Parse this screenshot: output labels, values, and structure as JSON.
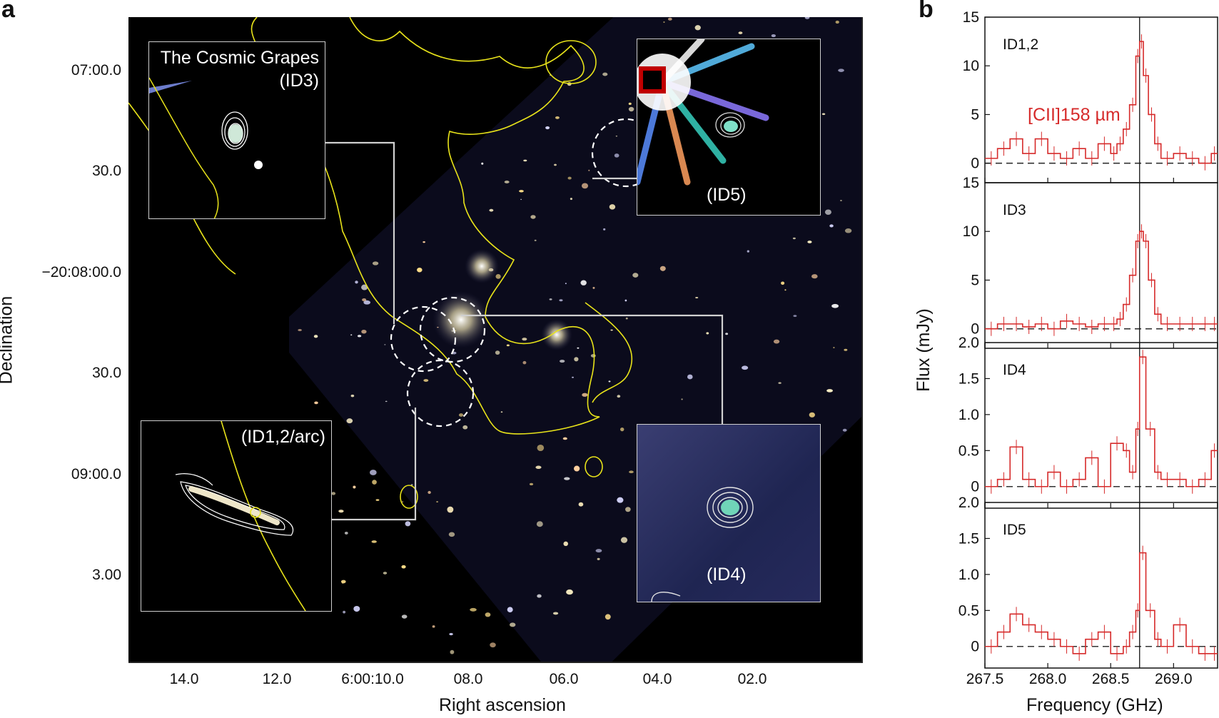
{
  "panel_a": {
    "letter": "a",
    "xlabel": "Right ascension",
    "ylabel": "Declination",
    "x_ticks": [
      "14.0",
      "12.0",
      "6:00:10.0",
      "08.0",
      "06.0",
      "04.0",
      "02.0"
    ],
    "y_ticks": [
      "07:00.0",
      "30.0",
      "−20:08:00.0",
      "30.0",
      "09:00.0",
      "3.00"
    ],
    "insets": {
      "id3": {
        "title": "The Cosmic Grapes",
        "tag": "(ID3)"
      },
      "id5": {
        "tag": "(ID5)"
      },
      "id12": {
        "tag": "(ID1,2/arc)"
      },
      "id4": {
        "tag": "(ID4)"
      }
    },
    "colors": {
      "contour": "#e8e31a",
      "leader": "#d8d8d8",
      "circle": "#ffffff"
    }
  },
  "panel_b": {
    "letter": "b",
    "xlabel": "Frequency (GHz)",
    "ylabel": "Flux (mJy)",
    "line_label": "[CII]158 µm",
    "line_color": "#d62a2a"
  },
  "chart_data": {
    "type": "line",
    "x_ticks": [
      "267.5",
      "268.0",
      "268.5",
      "269.0"
    ],
    "xlim": [
      267.5,
      269.35
    ],
    "reference_line_x": 268.73,
    "panels": [
      {
        "name": "ID1,2",
        "ylim": [
          -2,
          15
        ],
        "y_ticks": [
          "15",
          "10",
          "5",
          "0"
        ],
        "x": [
          267.5,
          267.6,
          267.7,
          267.8,
          267.9,
          268.0,
          268.1,
          268.2,
          268.3,
          268.4,
          268.5,
          268.55,
          268.6,
          268.65,
          268.7,
          268.73,
          268.76,
          268.8,
          268.85,
          268.9,
          269.0,
          269.1,
          269.2,
          269.3
        ],
        "y": [
          0.5,
          1.5,
          2.5,
          1.0,
          2.5,
          1.0,
          0.5,
          1.5,
          0.5,
          2.0,
          1.0,
          2.0,
          3.5,
          6.0,
          11.0,
          12.5,
          9.0,
          5.0,
          2.0,
          0.5,
          1.0,
          0.5,
          0.0,
          1.0
        ]
      },
      {
        "name": "ID3",
        "ylim": [
          -2,
          15
        ],
        "y_ticks": [
          "15",
          "10",
          "5",
          "0"
        ],
        "x": [
          267.5,
          267.6,
          267.7,
          267.8,
          267.9,
          268.0,
          268.1,
          268.2,
          268.3,
          268.4,
          268.5,
          268.55,
          268.6,
          268.65,
          268.7,
          268.73,
          268.76,
          268.8,
          268.85,
          268.9,
          269.0,
          269.1,
          269.2,
          269.3
        ],
        "y": [
          0.0,
          0.5,
          0.5,
          0.2,
          0.5,
          0.0,
          0.8,
          0.5,
          0.2,
          0.5,
          0.5,
          1.0,
          2.5,
          5.5,
          9.0,
          10.0,
          9.0,
          5.0,
          1.5,
          0.5,
          0.5,
          0.5,
          0.5,
          0.5
        ]
      },
      {
        "name": "ID4",
        "ylim": [
          -0.3,
          2.0
        ],
        "y_ticks": [
          "2.0",
          "1.5",
          "1.0",
          "0.5",
          "0"
        ],
        "x": [
          267.5,
          267.6,
          267.7,
          267.8,
          267.9,
          268.0,
          268.1,
          268.2,
          268.3,
          268.4,
          268.5,
          268.6,
          268.65,
          268.7,
          268.73,
          268.78,
          268.85,
          268.9,
          269.0,
          269.1,
          269.2,
          269.3
        ],
        "y": [
          0.0,
          0.1,
          0.55,
          0.1,
          0.0,
          0.2,
          0.0,
          0.1,
          0.4,
          0.0,
          0.6,
          0.5,
          0.2,
          0.8,
          1.8,
          0.8,
          0.2,
          0.1,
          0.1,
          0.0,
          0.1,
          0.5
        ]
      },
      {
        "name": "ID5",
        "ylim": [
          -0.3,
          2.0
        ],
        "y_ticks": [
          "2.0",
          "1.5",
          "1.0",
          "0.5",
          "0"
        ],
        "x": [
          267.5,
          267.6,
          267.7,
          267.8,
          267.9,
          268.0,
          268.1,
          268.2,
          268.3,
          268.4,
          268.5,
          268.6,
          268.65,
          268.7,
          268.73,
          268.78,
          268.85,
          268.9,
          269.0,
          269.1,
          269.2,
          269.3
        ],
        "y": [
          0.0,
          0.2,
          0.45,
          0.3,
          0.2,
          0.1,
          0.0,
          -0.1,
          0.1,
          0.2,
          -0.1,
          0.0,
          0.2,
          0.5,
          1.3,
          0.5,
          0.1,
          0.0,
          0.3,
          0.0,
          -0.1,
          -0.1
        ]
      }
    ]
  }
}
